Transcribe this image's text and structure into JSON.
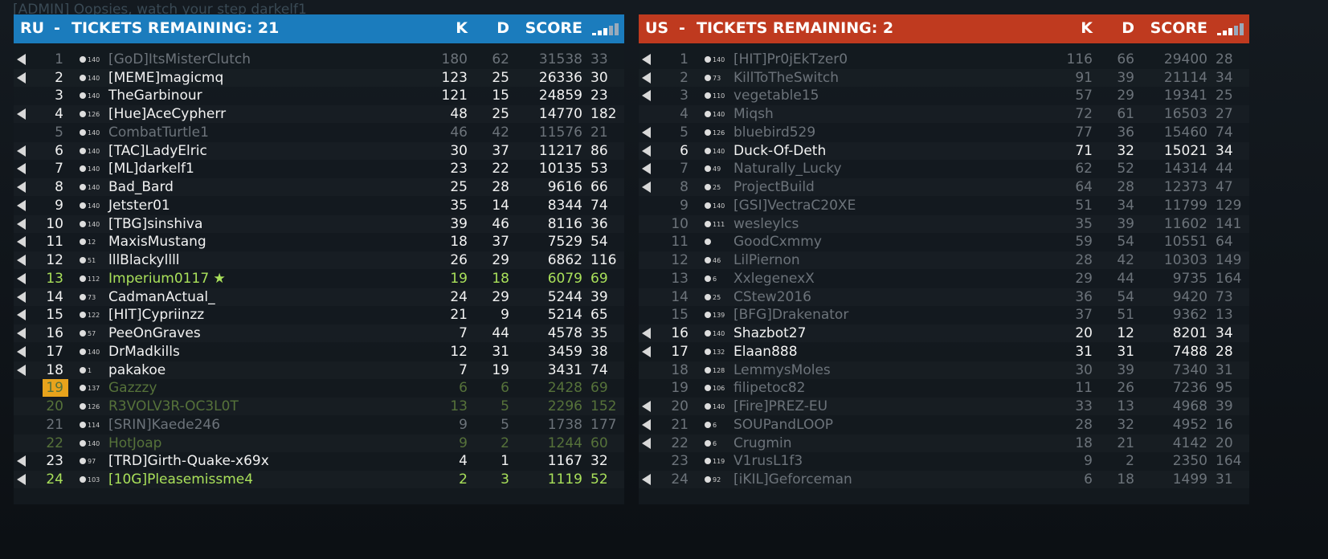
{
  "chat": "[ADMIN] Oopsies, watch your step darkelf1",
  "teams": [
    {
      "name": "RU",
      "separator": "-",
      "tickets": "TICKETS REMAINING: 21",
      "columns": [
        "K",
        "D",
        "SCORE"
      ],
      "color": "#1b7cbd",
      "rows": [
        {
          "pos": 1,
          "level": 140,
          "player": "[GoD]ItsMisterClutch",
          "k": 180,
          "d": 62,
          "score": 31538,
          "ping": 33,
          "state": "dim",
          "voice": true
        },
        {
          "pos": 2,
          "level": 140,
          "player": "[MEME]magicmq",
          "k": 123,
          "d": 25,
          "score": 26336,
          "ping": 30,
          "state": "bright",
          "voice": true
        },
        {
          "pos": 3,
          "level": 140,
          "player": "TheGarbinour",
          "k": 121,
          "d": 15,
          "score": 24859,
          "ping": 23,
          "state": "bright",
          "voice": false
        },
        {
          "pos": 4,
          "level": 126,
          "player": "[Hue]AceCypherr",
          "k": 48,
          "d": 25,
          "score": 14770,
          "ping": 182,
          "state": "bright",
          "voice": true
        },
        {
          "pos": 5,
          "level": 140,
          "player": "CombatTurtle1",
          "k": 46,
          "d": 42,
          "score": 11576,
          "ping": 21,
          "state": "dim",
          "voice": false
        },
        {
          "pos": 6,
          "level": 140,
          "player": "[TAC]LadyElric",
          "k": 30,
          "d": 37,
          "score": 11217,
          "ping": 86,
          "state": "bright",
          "voice": true
        },
        {
          "pos": 7,
          "level": 140,
          "player": "[ML]darkelf1",
          "k": 23,
          "d": 22,
          "score": 10135,
          "ping": 53,
          "state": "bright",
          "voice": true
        },
        {
          "pos": 8,
          "level": 140,
          "player": "Bad_Bard",
          "k": 25,
          "d": 28,
          "score": 9616,
          "ping": 66,
          "state": "bright",
          "voice": true
        },
        {
          "pos": 9,
          "level": 140,
          "player": "Jetster01",
          "k": 35,
          "d": 14,
          "score": 8344,
          "ping": 74,
          "state": "bright",
          "voice": true
        },
        {
          "pos": 10,
          "level": 140,
          "player": "[TBG]sinshiva",
          "k": 39,
          "d": 46,
          "score": 8116,
          "ping": 36,
          "state": "bright",
          "voice": true
        },
        {
          "pos": 11,
          "level": 12,
          "player": "MaxisMustang",
          "k": 18,
          "d": 37,
          "score": 7529,
          "ping": 54,
          "state": "bright",
          "voice": true
        },
        {
          "pos": 12,
          "level": 51,
          "player": "lllBlackyllll",
          "k": 26,
          "d": 29,
          "score": 6862,
          "ping": 116,
          "state": "bright",
          "voice": true
        },
        {
          "pos": 13,
          "level": 112,
          "player": "Imperium0117 ★",
          "k": 19,
          "d": 18,
          "score": 6079,
          "ping": 69,
          "state": "green",
          "voice": true
        },
        {
          "pos": 14,
          "level": 73,
          "player": "CadmanActual_",
          "k": 24,
          "d": 29,
          "score": 5244,
          "ping": 39,
          "state": "bright",
          "voice": true
        },
        {
          "pos": 15,
          "level": 122,
          "player": "[HIT]Cypriinzz",
          "k": 21,
          "d": 9,
          "score": 5214,
          "ping": 65,
          "state": "bright",
          "voice": true
        },
        {
          "pos": 16,
          "level": 57,
          "player": "PeeOnGraves",
          "k": 7,
          "d": 44,
          "score": 4578,
          "ping": 35,
          "state": "bright",
          "voice": true
        },
        {
          "pos": 17,
          "level": 140,
          "player": "DrMadkills",
          "k": 12,
          "d": 31,
          "score": 3459,
          "ping": 38,
          "state": "bright",
          "voice": true
        },
        {
          "pos": 18,
          "level": 1,
          "player": "pakakoe",
          "k": 7,
          "d": 19,
          "score": 3431,
          "ping": 74,
          "state": "bright",
          "voice": true
        },
        {
          "pos": 19,
          "level": 137,
          "player": "Gazzzy",
          "k": 6,
          "d": 6,
          "score": 2428,
          "ping": 69,
          "state": "dimgreen",
          "voice": false,
          "marked": true
        },
        {
          "pos": 20,
          "level": 126,
          "player": "R3VOLV3R-OC3L0T",
          "k": 13,
          "d": 5,
          "score": 2296,
          "ping": 152,
          "state": "dimgreen",
          "voice": false
        },
        {
          "pos": 21,
          "level": 114,
          "player": "[SRIN]Kaede246",
          "k": 9,
          "d": 5,
          "score": 1738,
          "ping": 177,
          "state": "dim",
          "voice": false
        },
        {
          "pos": 22,
          "level": 140,
          "player": "HotJoap",
          "k": 9,
          "d": 2,
          "score": 1244,
          "ping": 60,
          "state": "dimgreen",
          "voice": false
        },
        {
          "pos": 23,
          "level": 97,
          "player": "[TRD]Girth-Quake-x69x",
          "k": 4,
          "d": 1,
          "score": 1167,
          "ping": 32,
          "state": "bright",
          "voice": true
        },
        {
          "pos": 24,
          "level": 103,
          "player": "[10G]Pleasemissme4",
          "k": 2,
          "d": 3,
          "score": 1119,
          "ping": 52,
          "state": "green",
          "voice": true
        }
      ]
    },
    {
      "name": "US",
      "separator": "-",
      "tickets": "TICKETS REMAINING: 2",
      "columns": [
        "K",
        "D",
        "SCORE"
      ],
      "color": "#bf3a1f",
      "rows": [
        {
          "pos": 1,
          "level": 140,
          "player": "[HIT]Pr0jEkTzer0",
          "k": 116,
          "d": 66,
          "score": 29400,
          "ping": 28,
          "state": "dim",
          "voice": true
        },
        {
          "pos": 2,
          "level": 73,
          "player": "KillToTheSwitch",
          "k": 91,
          "d": 39,
          "score": 21114,
          "ping": 34,
          "state": "dim",
          "voice": true
        },
        {
          "pos": 3,
          "level": 110,
          "player": "vegetable15",
          "k": 57,
          "d": 29,
          "score": 19341,
          "ping": 25,
          "state": "dim",
          "voice": true
        },
        {
          "pos": 4,
          "level": 140,
          "player": "Miqsh",
          "k": 72,
          "d": 61,
          "score": 16503,
          "ping": 27,
          "state": "dim",
          "voice": false
        },
        {
          "pos": 5,
          "level": 126,
          "player": "bluebird529",
          "k": 77,
          "d": 36,
          "score": 15460,
          "ping": 74,
          "state": "dim",
          "voice": true
        },
        {
          "pos": 6,
          "level": 140,
          "player": "Duck-Of-Deth",
          "k": 71,
          "d": 32,
          "score": 15021,
          "ping": 34,
          "state": "bright",
          "voice": true
        },
        {
          "pos": 7,
          "level": 49,
          "player": "Naturally_Lucky",
          "k": 62,
          "d": 52,
          "score": 14314,
          "ping": 44,
          "state": "dim",
          "voice": true
        },
        {
          "pos": 8,
          "level": 25,
          "player": "ProjectBuild",
          "k": 64,
          "d": 28,
          "score": 12373,
          "ping": 47,
          "state": "dim",
          "voice": true
        },
        {
          "pos": 9,
          "level": 140,
          "player": "[GSI]VectraC20XE",
          "k": 51,
          "d": 34,
          "score": 11799,
          "ping": 129,
          "state": "dim",
          "voice": false
        },
        {
          "pos": 10,
          "level": 111,
          "player": "wesleylcs",
          "k": 35,
          "d": 39,
          "score": 11602,
          "ping": 141,
          "state": "dim",
          "voice": false
        },
        {
          "pos": 11,
          "level": null,
          "player": "GoodCxmmy",
          "k": 59,
          "d": 54,
          "score": 10551,
          "ping": 64,
          "state": "dim",
          "voice": false
        },
        {
          "pos": 12,
          "level": 46,
          "player": "LilPiernon",
          "k": 28,
          "d": 42,
          "score": 10303,
          "ping": 149,
          "state": "dim",
          "voice": false
        },
        {
          "pos": 13,
          "level": 6,
          "player": "XxlegenexX",
          "k": 29,
          "d": 44,
          "score": 9735,
          "ping": 164,
          "state": "dim",
          "voice": false
        },
        {
          "pos": 14,
          "level": 25,
          "player": "CStew2016",
          "k": 36,
          "d": 54,
          "score": 9420,
          "ping": 73,
          "state": "dim",
          "voice": false
        },
        {
          "pos": 15,
          "level": 139,
          "player": "[BFG]Drakenator",
          "k": 37,
          "d": 51,
          "score": 9362,
          "ping": 13,
          "state": "dim",
          "voice": false
        },
        {
          "pos": 16,
          "level": 140,
          "player": "Shazbot27",
          "k": 20,
          "d": 12,
          "score": 8201,
          "ping": 34,
          "state": "bright",
          "voice": true
        },
        {
          "pos": 17,
          "level": 132,
          "player": "Elaan888",
          "k": 31,
          "d": 31,
          "score": 7488,
          "ping": 28,
          "state": "bright",
          "voice": true
        },
        {
          "pos": 18,
          "level": 128,
          "player": "LemmysMoles",
          "k": 30,
          "d": 39,
          "score": 7340,
          "ping": 31,
          "state": "dim",
          "voice": false
        },
        {
          "pos": 19,
          "level": 106,
          "player": "filipetoc82",
          "k": 11,
          "d": 26,
          "score": 7236,
          "ping": 95,
          "state": "dim",
          "voice": false
        },
        {
          "pos": 20,
          "level": 140,
          "player": "[Fire]PREZ-EU",
          "k": 33,
          "d": 13,
          "score": 4968,
          "ping": 39,
          "state": "dim",
          "voice": true
        },
        {
          "pos": 21,
          "level": 6,
          "player": "SOUPandLOOP",
          "k": 28,
          "d": 32,
          "score": 4952,
          "ping": 16,
          "state": "dim",
          "voice": true
        },
        {
          "pos": 22,
          "level": 6,
          "player": "Crugmin",
          "k": 18,
          "d": 21,
          "score": 4142,
          "ping": 20,
          "state": "dim",
          "voice": true
        },
        {
          "pos": 23,
          "level": 119,
          "player": "V1rusL1f3",
          "k": 9,
          "d": 2,
          "score": 2350,
          "ping": 164,
          "state": "dim",
          "voice": false
        },
        {
          "pos": 24,
          "level": 92,
          "player": "[iKIL]Geforceman",
          "k": 6,
          "d": 18,
          "score": 1499,
          "ping": 31,
          "state": "dim",
          "voice": true
        }
      ]
    }
  ]
}
